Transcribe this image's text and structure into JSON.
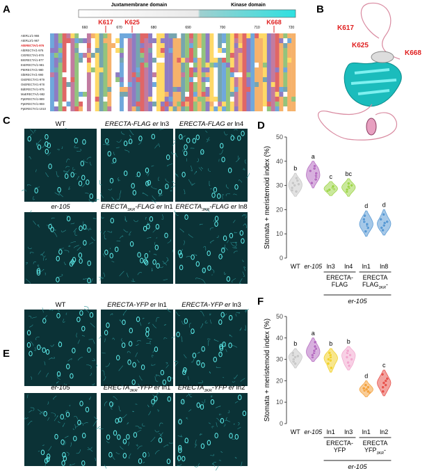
{
  "panel_a": {
    "label": "A",
    "domains": [
      "Juxtamembrane domain",
      "Kinase domain"
    ],
    "residues": [
      "K617",
      "K625",
      "K668"
    ],
    "positions": [
      660,
      670,
      680,
      690,
      700,
      710,
      720
    ],
    "sequences": [
      "AtERL1/1-966",
      "AtERL2/1-967",
      "AtERECTA/1-976",
      "AlERECTA/1-976",
      "CrERECTA/1-976",
      "BrERECTA/1-977",
      "EsERECTA/1-981",
      "PtERECTA/1-980",
      "SlERECTA/1-990",
      "GsERECTA/1-979",
      "OsERECTA/1-978",
      "BdERECTA/1-975",
      "MaERECTA/1-982",
      "PpERECTA/1-989",
      "PpERECTA/1-959",
      "PpERECTA/1-1010"
    ]
  },
  "panel_b": {
    "label": "B",
    "residues": [
      "K617",
      "K625",
      "K668"
    ]
  },
  "panel_c": {
    "label": "C",
    "images": [
      {
        "parts": [
          {
            "t": "WT"
          }
        ]
      },
      {
        "parts": [
          {
            "t": "ERECTA-FLAG er",
            "s": "i"
          },
          {
            "t": " ln3"
          }
        ]
      },
      {
        "parts": [
          {
            "t": "ERECTA-FLAG er",
            "s": "i"
          },
          {
            "t": " ln4"
          }
        ]
      },
      {
        "parts": [
          {
            "t": "er-105",
            "s": "i"
          }
        ]
      },
      {
        "parts": [
          {
            "t": "ERECTA",
            "s": "i"
          },
          {
            "t": "3KR",
            "s": "sub"
          },
          {
            "t": "-FLAG er",
            "s": "i"
          },
          {
            "t": " ln1"
          }
        ]
      },
      {
        "parts": [
          {
            "t": "ERECTA",
            "s": "i"
          },
          {
            "t": "3KR",
            "s": "sub"
          },
          {
            "t": "-FLAG er",
            "s": "i"
          },
          {
            "t": " ln8"
          }
        ]
      }
    ]
  },
  "panel_d": {
    "label": "D",
    "chart": {
      "type": "violin",
      "ylabel": "Stomata + meristemoid index (%)",
      "ylim": [
        0,
        50
      ],
      "yticks": [
        0,
        10,
        20,
        30,
        40,
        50
      ],
      "groups": [
        {
          "name": "WT",
          "color": "#c8c8c8",
          "letter": "b",
          "values": [
            27.5,
            28,
            29,
            30,
            30.5,
            31,
            32,
            33
          ]
        },
        {
          "name": "er-105",
          "italic": true,
          "color": "#b76fc2",
          "letter": "a",
          "values": [
            31,
            32.5,
            33.5,
            34,
            35,
            36,
            37,
            38
          ]
        },
        {
          "name": "ln3",
          "color": "#9fd64b",
          "letter": "c",
          "values": [
            27.8,
            28.2,
            28.5,
            28.8,
            29.2,
            29.6
          ]
        },
        {
          "name": "ln4",
          "color": "#9fd64b",
          "letter": "bc",
          "values": [
            27.5,
            28.3,
            29,
            29.5,
            30,
            30.8
          ]
        },
        {
          "name": "ln1",
          "color": "#5b9bd5",
          "letter": "d",
          "values": [
            11,
            12.5,
            13.5,
            14,
            15,
            16,
            17.5
          ]
        },
        {
          "name": "ln8",
          "color": "#5b9bd5",
          "letter": "d",
          "values": [
            11.5,
            12.5,
            13.5,
            14.5,
            15,
            16,
            18
          ]
        }
      ],
      "brackets": [
        {
          "lines": [
            [
              {
                "t": "ERECTA-"
              }
            ],
            [
              {
                "t": "FLAG"
              }
            ]
          ]
        },
        {
          "lines": [
            [
              {
                "t": "ERECTA"
              }
            ],
            [
              {
                "t": "FLAG"
              },
              {
                "t": "3KR",
                "s": "sub"
              },
              {
                "t": "-"
              }
            ]
          ]
        }
      ],
      "background": "er-105"
    }
  },
  "panel_e": {
    "label": "E",
    "images": [
      {
        "parts": [
          {
            "t": "WT"
          }
        ]
      },
      {
        "parts": [
          {
            "t": "ERECTA-YFP er",
            "s": "i"
          },
          {
            "t": " ln1"
          }
        ]
      },
      {
        "parts": [
          {
            "t": "ERECTA-YFP er",
            "s": "i"
          },
          {
            "t": " ln3"
          }
        ]
      },
      {
        "parts": [
          {
            "t": "er-105",
            "s": "i"
          }
        ]
      },
      {
        "parts": [
          {
            "t": "ERECTA",
            "s": "i"
          },
          {
            "t": "3KR",
            "s": "sub"
          },
          {
            "t": "-YFP er",
            "s": "i"
          },
          {
            "t": " ln1"
          }
        ]
      },
      {
        "parts": [
          {
            "t": "ERECTA",
            "s": "i"
          },
          {
            "t": "3KR",
            "s": "sub"
          },
          {
            "t": "-YFP er",
            "s": "i"
          },
          {
            "t": " ln2"
          }
        ]
      }
    ]
  },
  "panel_f": {
    "label": "F",
    "chart": {
      "type": "violin",
      "ylabel": "Stomata + meristemoid index (%)",
      "ylim": [
        0,
        50
      ],
      "yticks": [
        0,
        10,
        20,
        30,
        40,
        50
      ],
      "groups": [
        {
          "name": "WT",
          "color": "#c8c8c8",
          "letter": "b",
          "values": [
            28,
            29,
            30,
            31,
            31.5,
            32,
            33
          ]
        },
        {
          "name": "er-105",
          "italic": true,
          "color": "#b76fc2",
          "letter": "a",
          "values": [
            31,
            32,
            33,
            34,
            35,
            36,
            38
          ]
        },
        {
          "name": "ln1",
          "color": "#f2d22e",
          "letter": "b",
          "values": [
            26,
            28,
            29.5,
            30,
            31,
            32,
            33
          ]
        },
        {
          "name": "ln3",
          "color": "#f2a9cf",
          "letter": "b",
          "values": [
            27,
            28.5,
            30,
            31,
            32,
            33,
            34
          ]
        },
        {
          "name": "ln1",
          "color": "#f4a340",
          "letter": "d",
          "values": [
            14.5,
            15,
            15.5,
            16,
            16.5,
            17,
            18
          ]
        },
        {
          "name": "ln2",
          "color": "#e8554f",
          "letter": "c",
          "values": [
            15,
            17,
            18,
            19,
            20,
            21,
            23
          ]
        }
      ],
      "brackets": [
        {
          "lines": [
            [
              {
                "t": "ERECTA-"
              }
            ],
            [
              {
                "t": "YFP"
              }
            ]
          ]
        },
        {
          "lines": [
            [
              {
                "t": "ERECTA"
              }
            ],
            [
              {
                "t": "YFP"
              },
              {
                "t": "3KR",
                "s": "sub"
              },
              {
                "t": "-"
              }
            ]
          ]
        }
      ],
      "background": "er-105"
    }
  }
}
